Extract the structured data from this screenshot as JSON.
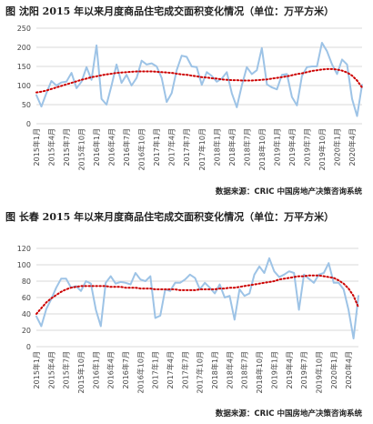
{
  "chart_data": [
    {
      "type": "line",
      "title": "图  沈阳 2015 年以来月度商品住宅成交面积变化情况（单位：万平方米）",
      "source": "数据来源：CRIC 中国房地产决策咨询系统",
      "ylim": [
        0,
        250
      ],
      "yticks": [
        0,
        50,
        100,
        150,
        200,
        250
      ],
      "xtick_labels": [
        "2015年1月",
        "2015年4月",
        "2015年7月",
        "2015年10月",
        "2016年1月",
        "2016年4月",
        "2016年7月",
        "2016年10月",
        "2017年1月",
        "2017年4月",
        "2017年7月",
        "2017年10月",
        "2018年1月",
        "2018年4月",
        "2018年7月",
        "2018年10月",
        "2019年1月",
        "2019年4月",
        "2019年7月",
        "2019年10月",
        "2020年1月",
        "2020年4月"
      ],
      "grid": true,
      "colors": {
        "series": "#9dc3e6",
        "trend": "#cc0000"
      },
      "series": [
        {
          "values": [
            75,
            45,
            80,
            112,
            100,
            108,
            110,
            133,
            93,
            110,
            148,
            115,
            205,
            65,
            50,
            100,
            155,
            107,
            128,
            100,
            120,
            165,
            155,
            158,
            150,
            120,
            57,
            80,
            140,
            178,
            175,
            150,
            148,
            102,
            135,
            125,
            110,
            118,
            135,
            80,
            43,
            100,
            148,
            130,
            140,
            198,
            103,
            95,
            90,
            128,
            130,
            70,
            48,
            125,
            148,
            150,
            150,
            212,
            190,
            155,
            130,
            168,
            155,
            65,
            20,
            102
          ]
        },
        {
          "values": [
            82,
            84,
            87,
            91,
            95,
            99,
            103,
            107,
            111,
            115,
            118,
            122,
            124,
            127,
            129,
            131,
            133,
            134,
            135,
            136,
            137,
            137,
            137,
            137,
            136,
            135,
            134,
            133,
            131,
            129,
            128,
            126,
            124,
            122,
            121,
            119,
            118,
            116,
            115,
            114,
            114,
            113,
            113,
            113,
            114,
            115,
            116,
            118,
            120,
            122,
            124,
            127,
            130,
            132,
            135,
            138,
            140,
            142,
            143,
            143,
            142,
            139,
            134,
            126,
            113,
            95
          ],
          "style": "dotted-trend"
        }
      ]
    },
    {
      "type": "line",
      "title": "图  长春 2015 年以来月度商品住宅成交面积变化情况（单位：万平方米）",
      "source": "数据来源：CRIC 中国房地产决策咨询系统",
      "ylim": [
        0,
        120
      ],
      "yticks": [
        0,
        20,
        40,
        60,
        80,
        100,
        120
      ],
      "xtick_labels": [
        "2015年1月",
        "2015年4月",
        "2015年7月",
        "2015年10月",
        "2016年1月",
        "2016年4月",
        "2016年7月",
        "2016年10月",
        "2017年1月",
        "2017年4月",
        "2017年7月",
        "2017年10月",
        "2018年1月",
        "2018年4月",
        "2018年7月",
        "2018年10月",
        "2019年1月",
        "2019年4月",
        "2019年7月",
        "2019年10月",
        "2020年1月",
        "2020年4月"
      ],
      "grid": true,
      "colors": {
        "series": "#9dc3e6",
        "trend": "#cc0000"
      },
      "series": [
        {
          "values": [
            37,
            25,
            46,
            58,
            72,
            83,
            83,
            72,
            74,
            68,
            80,
            77,
            45,
            25,
            78,
            86,
            77,
            79,
            78,
            76,
            90,
            82,
            80,
            86,
            35,
            38,
            70,
            68,
            78,
            78,
            82,
            88,
            84,
            70,
            78,
            72,
            65,
            76,
            60,
            62,
            33,
            70,
            62,
            65,
            88,
            98,
            90,
            108,
            92,
            85,
            88,
            92,
            90,
            45,
            88,
            83,
            78,
            88,
            90,
            102,
            78,
            78,
            70,
            45,
            10,
            62
          ]
        },
        {
          "values": [
            40,
            47,
            54,
            59,
            63,
            67,
            70,
            72,
            73,
            74,
            74,
            74,
            74,
            74,
            74,
            73,
            73,
            73,
            72,
            72,
            72,
            71,
            71,
            71,
            70,
            70,
            70,
            70,
            70,
            69,
            69,
            69,
            69,
            70,
            70,
            70,
            70,
            71,
            71,
            72,
            72,
            73,
            74,
            75,
            76,
            77,
            78,
            79,
            80,
            82,
            83,
            84,
            85,
            86,
            86,
            87,
            87,
            87,
            86,
            85,
            84,
            81,
            77,
            71,
            62,
            48
          ],
          "style": "dotted-trend"
        }
      ]
    }
  ]
}
